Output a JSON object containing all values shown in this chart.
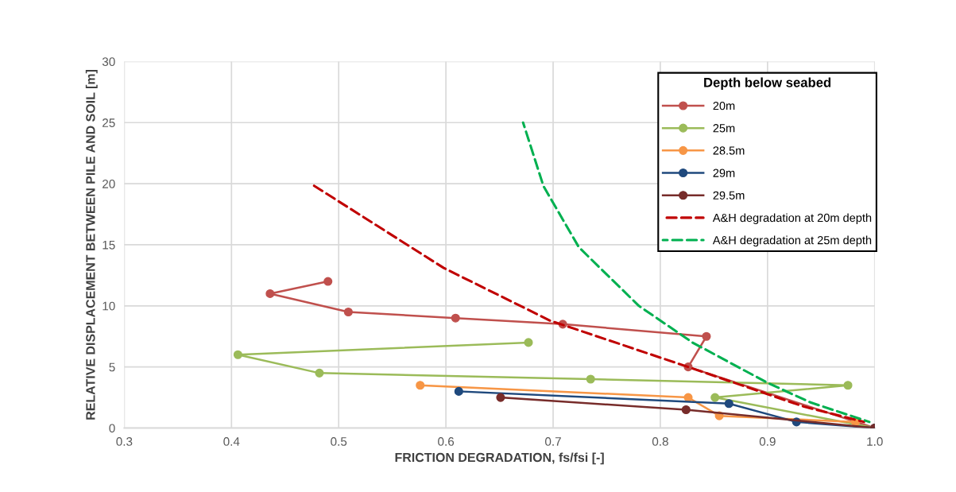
{
  "chart_data": {
    "type": "line",
    "xlabel": "FRICTION DEGRADATION, fs/fsi [-]",
    "ylabel": "RELATIVE DISPLACEMENT BETWEEN PILE AND SOIL [m]",
    "legend_title": "Depth below seabed",
    "legend": "top right",
    "grid": true,
    "xlim": [
      0.3,
      1.0
    ],
    "xticks": [
      {
        "value": 0.3,
        "label": "0.3"
      },
      {
        "value": 0.4,
        "label": "0.4"
      },
      {
        "value": 0.5,
        "label": "0.5"
      },
      {
        "value": 0.6,
        "label": "0.6"
      },
      {
        "value": 0.7,
        "label": "0.7"
      },
      {
        "value": 0.8,
        "label": "0.8"
      },
      {
        "value": 0.9,
        "label": "0.9"
      },
      {
        "value": 1.0,
        "label": "1.0"
      }
    ],
    "ylim": [
      0,
      30
    ],
    "yticks": [
      0,
      5,
      10,
      15,
      20,
      25,
      30
    ],
    "series": [
      {
        "name": "20m",
        "color": "#c0504d",
        "marker": "circle",
        "line_style": "solid",
        "x": [
          0.49,
          0.436,
          0.509,
          0.609,
          0.709,
          0.843,
          0.826,
          1.0
        ],
        "values": [
          12,
          11,
          9.5,
          9,
          8.5,
          7.5,
          5,
          0
        ]
      },
      {
        "name": "25m",
        "color": "#9bbb59",
        "marker": "circle",
        "line_style": "solid",
        "x": [
          0.677,
          0.406,
          0.482,
          0.735,
          0.975,
          0.851,
          1.0
        ],
        "values": [
          7,
          6,
          4.5,
          4,
          3.5,
          2.5,
          0
        ]
      },
      {
        "name": "28.5m",
        "color": "#f79646",
        "marker": "circle",
        "line_style": "solid",
        "x": [
          0.576,
          0.826,
          0.855,
          0.982
        ],
        "values": [
          3.5,
          2.5,
          1,
          0.5
        ]
      },
      {
        "name": "29m",
        "color": "#1f497d",
        "marker": "circle",
        "line_style": "solid",
        "x": [
          0.612,
          0.864,
          0.927,
          1.0
        ],
        "values": [
          3,
          2,
          0.5,
          0
        ]
      },
      {
        "name": "29.5m",
        "color": "#772c2a",
        "marker": "circle",
        "line_style": "solid",
        "x": [
          0.651,
          0.824,
          1.0
        ],
        "values": [
          2.5,
          1.5,
          0
        ]
      },
      {
        "name": "A&H degradation at 20m depth",
        "color": "#c00000",
        "marker": "none",
        "line_style": "dashed",
        "x": [
          0.474,
          0.598,
          0.697,
          0.826,
          0.934,
          0.99
        ],
        "values": [
          20,
          13.1,
          8.8,
          5,
          1.75,
          0.5
        ]
      },
      {
        "name": "A&H degradation at 25m depth",
        "color": "#00b050",
        "marker": "none",
        "line_style": "dashed",
        "x": [
          0.672,
          0.691,
          0.724,
          0.78,
          0.83,
          0.9,
          0.94,
          0.995
        ],
        "values": [
          25,
          19.8,
          14.8,
          10,
          7,
          3.7,
          2.1,
          0.5
        ]
      }
    ]
  }
}
